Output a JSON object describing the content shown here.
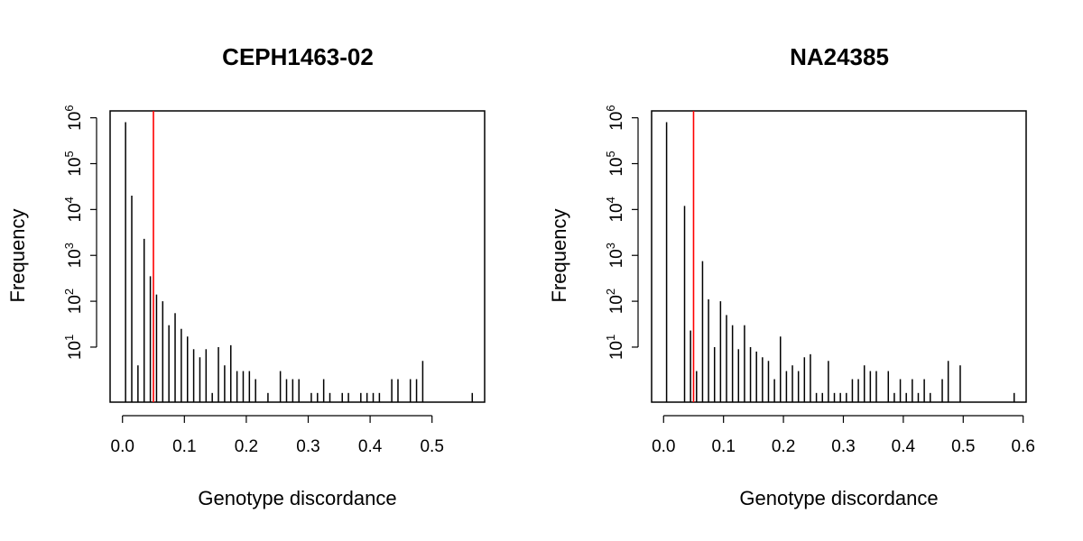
{
  "colors": {
    "bar": "#000000",
    "threshold": "#ff0000",
    "axis": "#000000",
    "background": "#ffffff"
  },
  "chart_data": [
    {
      "type": "bar",
      "title": "CEPH1463-02",
      "xlabel": "Genotype discordance",
      "ylabel": "Frequency",
      "xlim": [
        -0.02,
        0.585
      ],
      "ylim_log10": [
        -0.2,
        6.15
      ],
      "y_scale": "log",
      "x_ticks": [
        0.0,
        0.1,
        0.2,
        0.3,
        0.4,
        0.5
      ],
      "x_tick_labels": [
        "0.0",
        "0.1",
        "0.2",
        "0.3",
        "0.4",
        "0.5"
      ],
      "y_ticks": [
        {
          "base": "10",
          "exp": "1"
        },
        {
          "base": "10",
          "exp": "2"
        },
        {
          "base": "10",
          "exp": "3"
        },
        {
          "base": "10",
          "exp": "4"
        },
        {
          "base": "10",
          "exp": "5"
        },
        {
          "base": "10",
          "exp": "6"
        }
      ],
      "threshold_x": 0.05,
      "bars": [
        {
          "x": 0.005,
          "y": 800000
        },
        {
          "x": 0.015,
          "y": 20000
        },
        {
          "x": 0.025,
          "y": 4
        },
        {
          "x": 0.035,
          "y": 2300
        },
        {
          "x": 0.045,
          "y": 350
        },
        {
          "x": 0.055,
          "y": 140
        },
        {
          "x": 0.065,
          "y": 100
        },
        {
          "x": 0.075,
          "y": 30
        },
        {
          "x": 0.085,
          "y": 55
        },
        {
          "x": 0.095,
          "y": 25
        },
        {
          "x": 0.105,
          "y": 17
        },
        {
          "x": 0.115,
          "y": 9
        },
        {
          "x": 0.125,
          "y": 6
        },
        {
          "x": 0.135,
          "y": 9
        },
        {
          "x": 0.145,
          "y": 1
        },
        {
          "x": 0.155,
          "y": 10
        },
        {
          "x": 0.165,
          "y": 4
        },
        {
          "x": 0.175,
          "y": 11
        },
        {
          "x": 0.185,
          "y": 3
        },
        {
          "x": 0.195,
          "y": 3
        },
        {
          "x": 0.205,
          "y": 3
        },
        {
          "x": 0.215,
          "y": 2
        },
        {
          "x": 0.235,
          "y": 1
        },
        {
          "x": 0.255,
          "y": 3
        },
        {
          "x": 0.265,
          "y": 2
        },
        {
          "x": 0.275,
          "y": 2
        },
        {
          "x": 0.285,
          "y": 2
        },
        {
          "x": 0.305,
          "y": 1
        },
        {
          "x": 0.315,
          "y": 1
        },
        {
          "x": 0.325,
          "y": 2
        },
        {
          "x": 0.335,
          "y": 1
        },
        {
          "x": 0.355,
          "y": 1
        },
        {
          "x": 0.365,
          "y": 1
        },
        {
          "x": 0.385,
          "y": 1
        },
        {
          "x": 0.395,
          "y": 1
        },
        {
          "x": 0.405,
          "y": 1
        },
        {
          "x": 0.415,
          "y": 1
        },
        {
          "x": 0.435,
          "y": 2
        },
        {
          "x": 0.445,
          "y": 2
        },
        {
          "x": 0.465,
          "y": 2
        },
        {
          "x": 0.475,
          "y": 2
        },
        {
          "x": 0.485,
          "y": 5
        },
        {
          "x": 0.565,
          "y": 1
        }
      ]
    },
    {
      "type": "bar",
      "title": "NA24385",
      "xlabel": "Genotype discordance",
      "ylabel": "Frequency",
      "xlim": [
        -0.02,
        0.605
      ],
      "ylim_log10": [
        -0.2,
        6.15
      ],
      "y_scale": "log",
      "x_ticks": [
        0.0,
        0.1,
        0.2,
        0.3,
        0.4,
        0.5,
        0.6
      ],
      "x_tick_labels": [
        "0.0",
        "0.1",
        "0.2",
        "0.3",
        "0.4",
        "0.5",
        "0.6"
      ],
      "y_ticks": [
        {
          "base": "10",
          "exp": "1"
        },
        {
          "base": "10",
          "exp": "2"
        },
        {
          "base": "10",
          "exp": "3"
        },
        {
          "base": "10",
          "exp": "4"
        },
        {
          "base": "10",
          "exp": "5"
        },
        {
          "base": "10",
          "exp": "6"
        }
      ],
      "threshold_x": 0.05,
      "bars": [
        {
          "x": 0.005,
          "y": 800000
        },
        {
          "x": 0.035,
          "y": 12000
        },
        {
          "x": 0.045,
          "y": 23
        },
        {
          "x": 0.055,
          "y": 3
        },
        {
          "x": 0.065,
          "y": 750
        },
        {
          "x": 0.075,
          "y": 110
        },
        {
          "x": 0.085,
          "y": 10
        },
        {
          "x": 0.095,
          "y": 100
        },
        {
          "x": 0.105,
          "y": 50
        },
        {
          "x": 0.115,
          "y": 30
        },
        {
          "x": 0.125,
          "y": 9
        },
        {
          "x": 0.135,
          "y": 30
        },
        {
          "x": 0.145,
          "y": 10
        },
        {
          "x": 0.155,
          "y": 8
        },
        {
          "x": 0.165,
          "y": 6
        },
        {
          "x": 0.175,
          "y": 5
        },
        {
          "x": 0.185,
          "y": 2
        },
        {
          "x": 0.195,
          "y": 17
        },
        {
          "x": 0.205,
          "y": 3
        },
        {
          "x": 0.215,
          "y": 4
        },
        {
          "x": 0.225,
          "y": 3
        },
        {
          "x": 0.235,
          "y": 6
        },
        {
          "x": 0.245,
          "y": 7
        },
        {
          "x": 0.255,
          "y": 1
        },
        {
          "x": 0.265,
          "y": 1
        },
        {
          "x": 0.275,
          "y": 5
        },
        {
          "x": 0.285,
          "y": 1
        },
        {
          "x": 0.295,
          "y": 1
        },
        {
          "x": 0.305,
          "y": 1
        },
        {
          "x": 0.315,
          "y": 2
        },
        {
          "x": 0.325,
          "y": 2
        },
        {
          "x": 0.335,
          "y": 4
        },
        {
          "x": 0.345,
          "y": 3
        },
        {
          "x": 0.355,
          "y": 3
        },
        {
          "x": 0.375,
          "y": 3
        },
        {
          "x": 0.385,
          "y": 1
        },
        {
          "x": 0.395,
          "y": 2
        },
        {
          "x": 0.405,
          "y": 1
        },
        {
          "x": 0.415,
          "y": 2
        },
        {
          "x": 0.425,
          "y": 1
        },
        {
          "x": 0.435,
          "y": 2
        },
        {
          "x": 0.445,
          "y": 1
        },
        {
          "x": 0.465,
          "y": 2
        },
        {
          "x": 0.475,
          "y": 5
        },
        {
          "x": 0.495,
          "y": 4
        },
        {
          "x": 0.585,
          "y": 1
        }
      ]
    }
  ]
}
